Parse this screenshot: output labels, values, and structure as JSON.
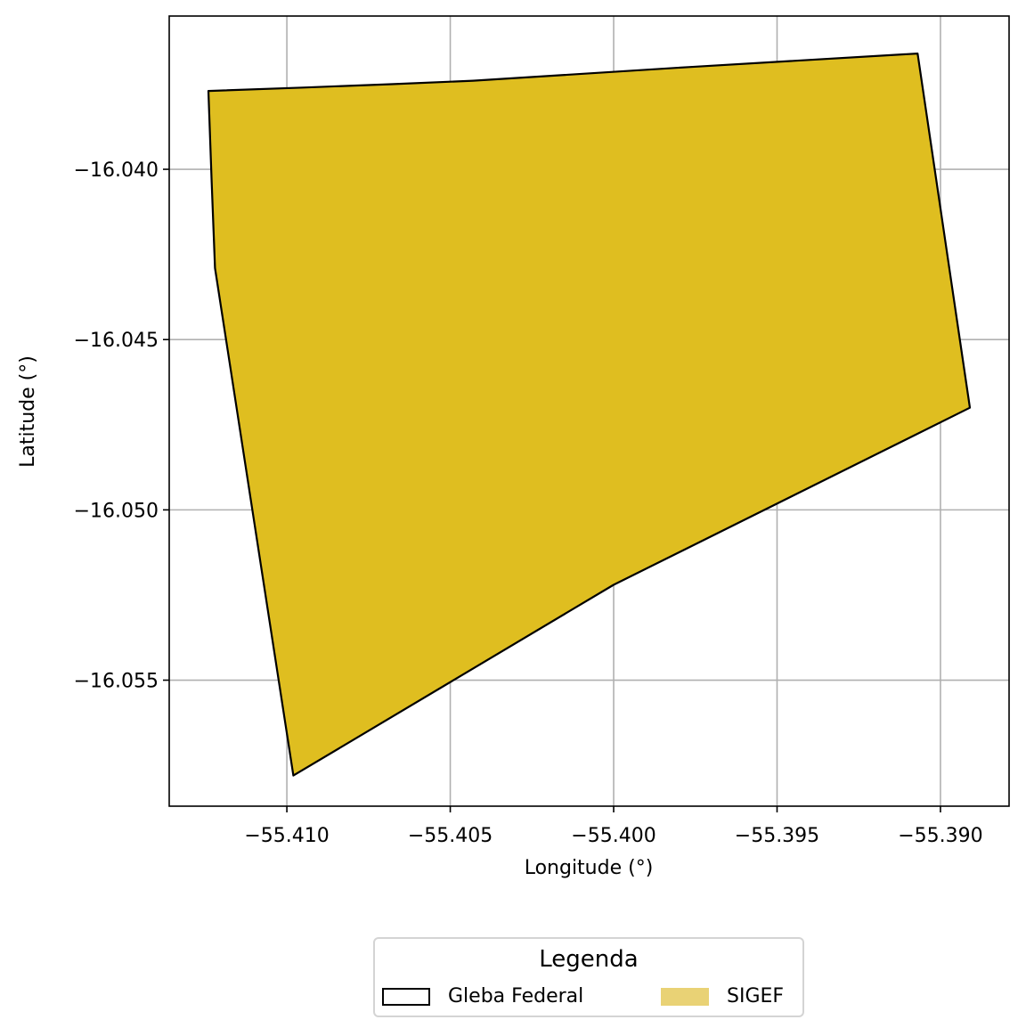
{
  "chart_data": {
    "type": "map",
    "title": "",
    "xlabel": "Longitude (°)",
    "ylabel": "Latitude (°)",
    "xlim": [
      -55.4136,
      -55.3879
    ],
    "ylim": [
      -16.0587,
      -16.0355
    ],
    "xticks": [
      -55.41,
      -55.405,
      -55.4,
      -55.395,
      -55.39
    ],
    "yticks": [
      -16.04,
      -16.045,
      -16.05,
      -16.055
    ],
    "xtick_labels": [
      "−55.410",
      "−55.405",
      "−55.400",
      "−55.395",
      "−55.390"
    ],
    "ytick_labels": [
      "−16.040",
      "−16.045",
      "−16.050",
      "−16.055"
    ],
    "grid": true,
    "layers": [
      {
        "name": "SIGEF",
        "fill": "#dfbe20",
        "edge": "#000000",
        "polygon": [
          [
            -55.4124,
            -16.0377
          ],
          [
            -55.4095,
            -16.0376
          ],
          [
            -55.4068,
            -16.0375
          ],
          [
            -55.4043,
            -16.0374
          ],
          [
            -55.3977,
            -16.037
          ],
          [
            -55.3907,
            -16.0366
          ],
          [
            -55.3891,
            -16.047
          ],
          [
            -55.4,
            -16.0522
          ],
          [
            -55.4098,
            -16.0578
          ],
          [
            -55.4122,
            -16.0429
          ],
          [
            -55.4123,
            -16.0404
          ],
          [
            -55.4124,
            -16.0377
          ]
        ]
      }
    ],
    "legend": {
      "title": "Legenda",
      "placement": "bottom-center",
      "entries": [
        {
          "label": "Gleba Federal",
          "style": "outline",
          "edge": "#000000"
        },
        {
          "label": "SIGEF",
          "style": "fill",
          "fill": "#e9d275"
        }
      ]
    }
  }
}
